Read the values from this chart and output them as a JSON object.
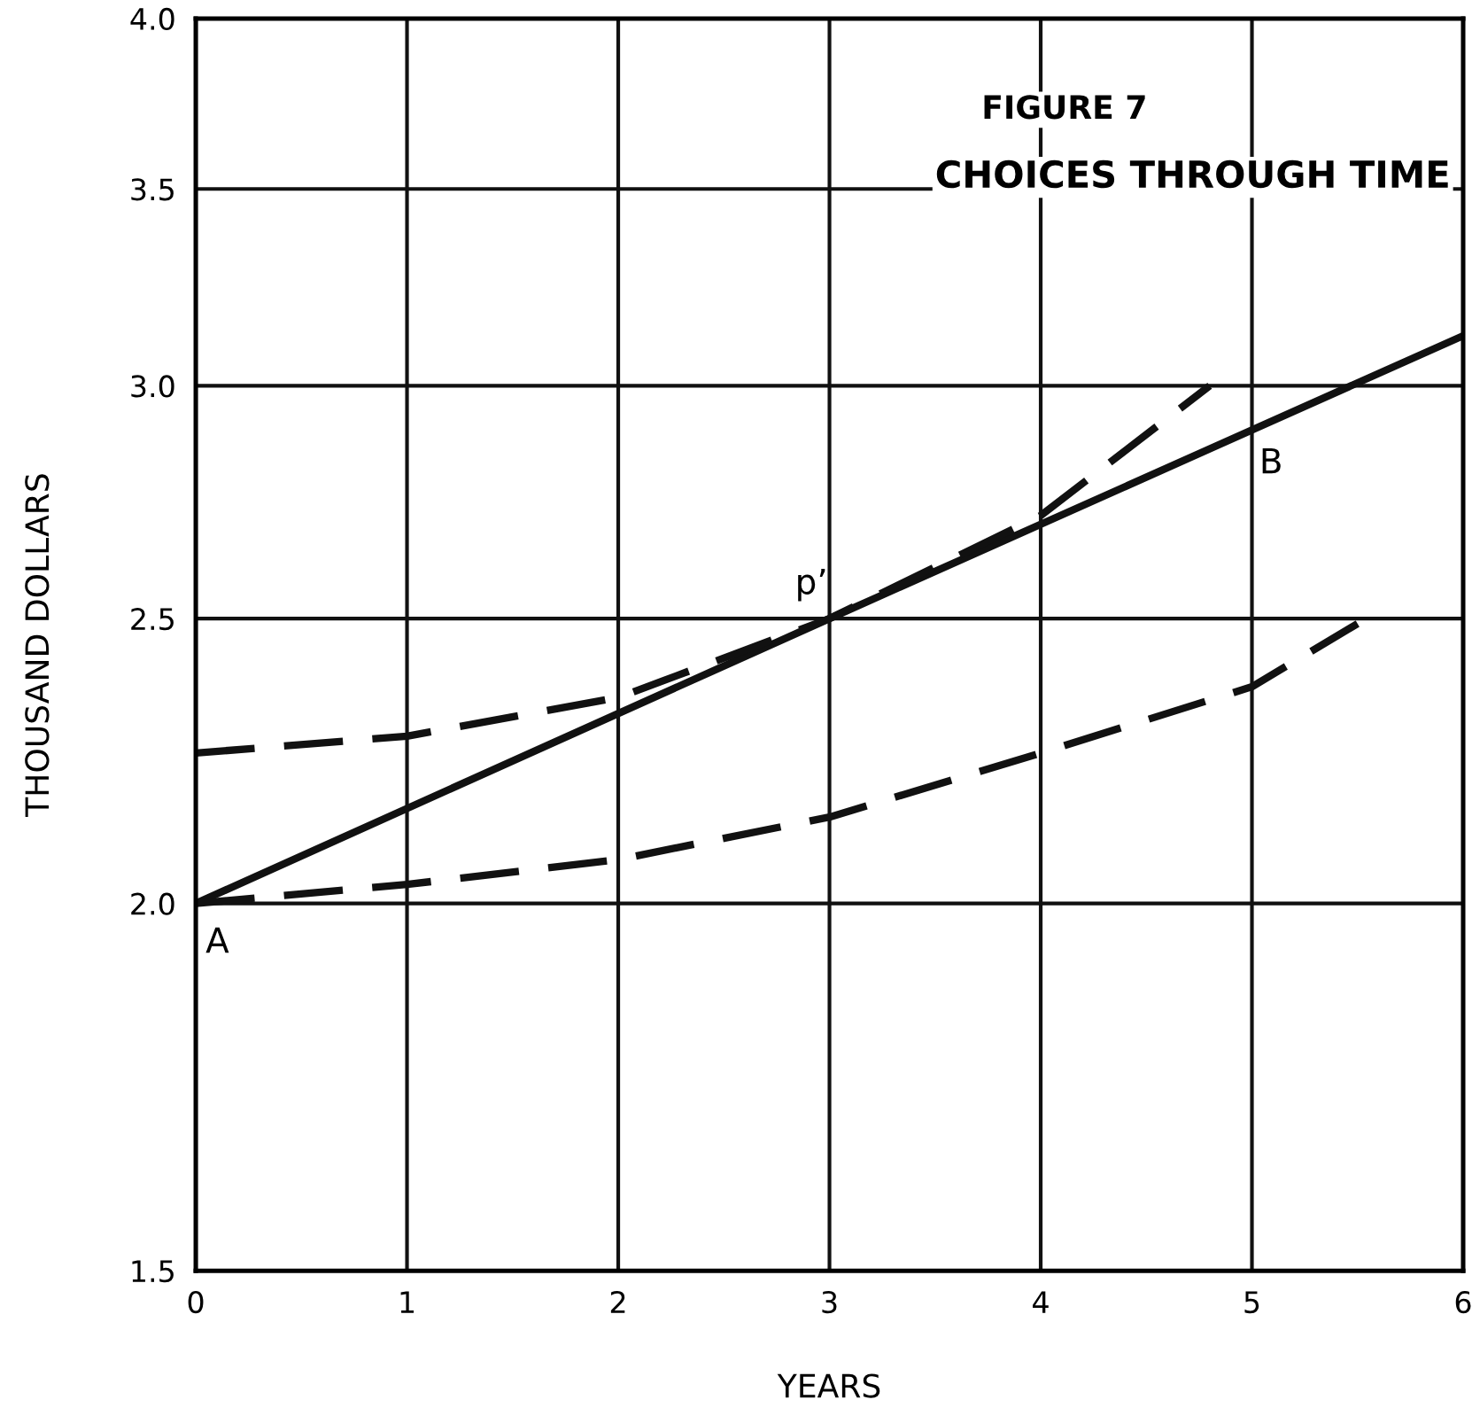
{
  "chart_data": {
    "type": "line",
    "title": "FIGURE 7",
    "subtitle": "CHOICES THROUGH TIME",
    "xlabel": "YEARS",
    "ylabel": "THOUSAND DOLLARS",
    "log": "y",
    "grid": true,
    "marker": "none",
    "xlim": [
      0,
      6
    ],
    "xticks": [
      0,
      1,
      2,
      3,
      4,
      5,
      6
    ],
    "ylim": [
      1.5,
      4.0
    ],
    "yticks": [
      {
        "value": 1.5,
        "label": "1.5"
      },
      {
        "value": 2.0,
        "label": "2.0"
      },
      {
        "value": 2.5,
        "label": "2.5"
      },
      {
        "value": 3.0,
        "label": "3.0"
      },
      {
        "value": 3.5,
        "label": "3.5"
      },
      {
        "value": 4.0,
        "label": "4.0"
      }
    ],
    "series": [
      {
        "color": "#111111",
        "line_style": "solid",
        "x": [
          0,
          3,
          6
        ],
        "values": [
          2.0,
          2.5,
          3.12
        ]
      },
      {
        "color": "#111111",
        "line_style": "dashed",
        "x": [
          0,
          1,
          2,
          3,
          4,
          4.8
        ],
        "values": [
          2.25,
          2.28,
          2.35,
          2.5,
          2.71,
          3.0
        ]
      },
      {
        "color": "#111111",
        "line_style": "dashed",
        "x": [
          0,
          1,
          2,
          3,
          4,
          5,
          5.5
        ],
        "values": [
          2.0,
          2.03,
          2.07,
          2.14,
          2.25,
          2.37,
          2.49
        ]
      }
    ],
    "annotations": [
      {
        "text": "A",
        "x": 0,
        "y": 2.0
      },
      {
        "text": "p’",
        "x": 3,
        "y": 2.5
      },
      {
        "text": "B",
        "x": 5,
        "y": 2.9
      }
    ]
  }
}
